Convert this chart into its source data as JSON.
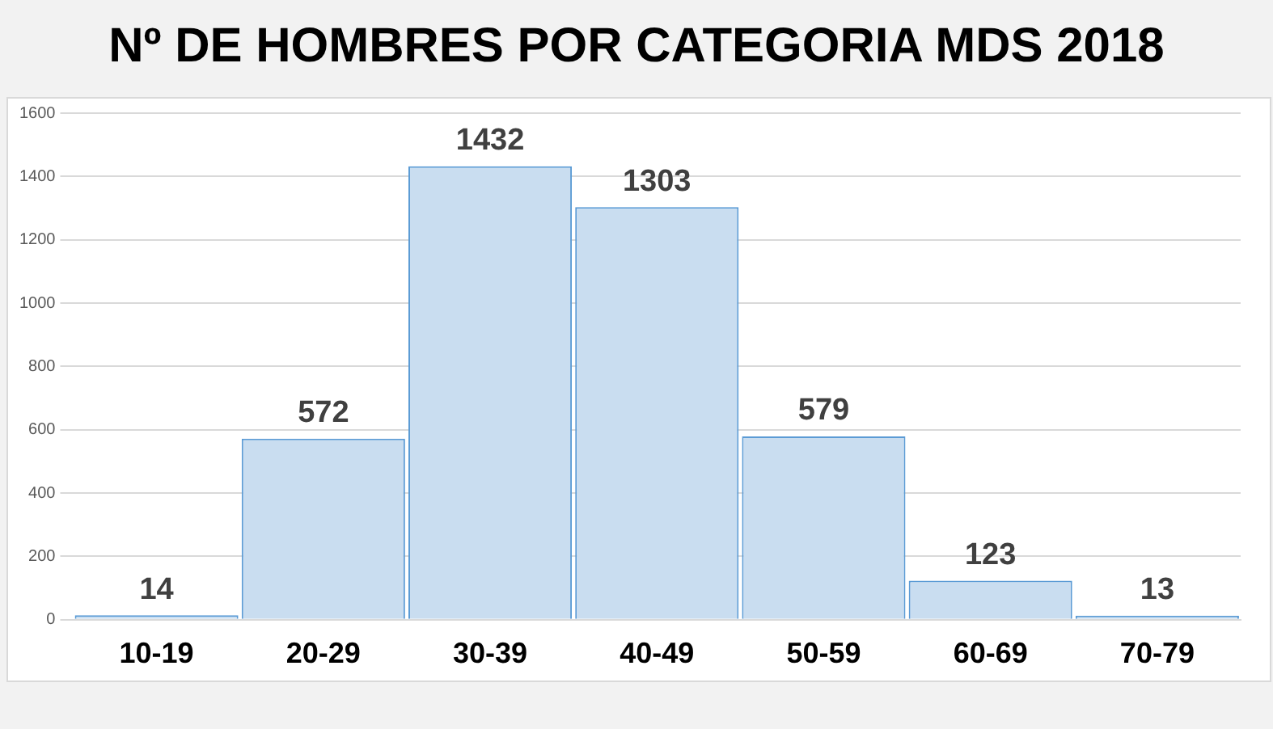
{
  "chart_data": {
    "type": "bar",
    "title": "Nº DE HOMBRES POR CATEGORIA MDS 2018",
    "categories": [
      "10-19",
      "20-29",
      "30-39",
      "40-49",
      "50-59",
      "60-69",
      "70-79"
    ],
    "values": [
      14,
      572,
      1432,
      1303,
      579,
      123,
      13
    ],
    "color": "#c9ddf0",
    "ylim": [
      0,
      1600
    ],
    "yticks": [
      0,
      200,
      400,
      600,
      800,
      1000,
      1200,
      1400,
      1600
    ],
    "grid": "y",
    "data_labels": true
  }
}
